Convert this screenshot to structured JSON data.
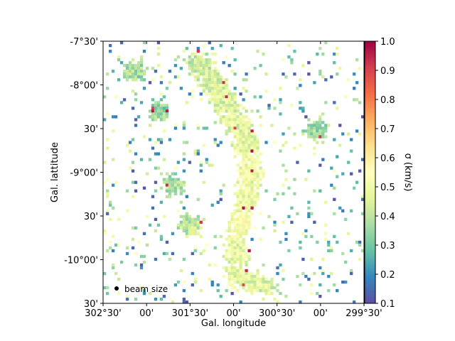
{
  "chart_data": {
    "type": "heatmap",
    "title": "",
    "xlabel": "Gal. longitude",
    "ylabel": "Gal. lattitude",
    "xlim": [
      302.5,
      299.5
    ],
    "ylim": [
      -10.5,
      -7.5
    ],
    "x_ticks": [
      {
        "value": 302.5,
        "label": "302°30'"
      },
      {
        "value": 302.0,
        "label": "00'"
      },
      {
        "value": 301.5,
        "label": "301°30'"
      },
      {
        "value": 301.0,
        "label": "00'"
      },
      {
        "value": 300.5,
        "label": "300°30'"
      },
      {
        "value": 300.0,
        "label": "00'"
      },
      {
        "value": 299.5,
        "label": "299°30'"
      }
    ],
    "y_ticks": [
      {
        "value": -7.5,
        "label": "-7°30'"
      },
      {
        "value": -8.0,
        "label": "-8°00'"
      },
      {
        "value": -8.5,
        "label": "30'"
      },
      {
        "value": -9.0,
        "label": "-9°00'"
      },
      {
        "value": -9.5,
        "label": "30'"
      },
      {
        "value": -10.0,
        "label": "-10°00'"
      },
      {
        "value": -10.5,
        "label": "30'"
      }
    ],
    "colorbar": {
      "label": "σ (km/s)",
      "range": [
        0.1,
        1.0
      ],
      "ticks": [
        {
          "value": 0.1,
          "label": "0.1"
        },
        {
          "value": 0.2,
          "label": "0.2"
        },
        {
          "value": 0.3,
          "label": "0.3"
        },
        {
          "value": 0.4,
          "label": "0.4"
        },
        {
          "value": 0.5,
          "label": "0.5"
        },
        {
          "value": 0.6,
          "label": "0.6"
        },
        {
          "value": 0.7,
          "label": "0.7"
        },
        {
          "value": 0.8,
          "label": "0.8"
        },
        {
          "value": 0.9,
          "label": "0.9"
        },
        {
          "value": 1.0,
          "label": "1.0"
        }
      ],
      "colormap": "Spectral_r",
      "stops": [
        "#5e4fa2",
        "#3288bd",
        "#66c2a5",
        "#abdda4",
        "#e6f598",
        "#ffffbf",
        "#fee08b",
        "#fdae61",
        "#f46d43",
        "#d53e4f",
        "#9e0142"
      ]
    },
    "legend": {
      "label": "beam size",
      "placement": "bottom-left"
    },
    "regions": [
      {
        "lon": 301.4,
        "lat": -7.76,
        "sigma": 0.42
      },
      {
        "lon": 301.23,
        "lat": -7.98,
        "sigma": 0.45
      },
      {
        "lon": 301.1,
        "lat": -8.2,
        "sigma": 0.46
      },
      {
        "lon": 300.95,
        "lat": -8.45,
        "sigma": 0.46
      },
      {
        "lon": 300.85,
        "lat": -8.7,
        "sigma": 0.48
      },
      {
        "lon": 300.82,
        "lat": -9.0,
        "sigma": 0.5
      },
      {
        "lon": 300.85,
        "lat": -9.3,
        "sigma": 0.5
      },
      {
        "lon": 300.92,
        "lat": -9.6,
        "sigma": 0.52
      },
      {
        "lon": 300.97,
        "lat": -9.9,
        "sigma": 0.48
      },
      {
        "lon": 300.95,
        "lat": -10.2,
        "sigma": 0.48
      },
      {
        "lon": 300.65,
        "lat": -10.3,
        "sigma": 0.45
      },
      {
        "lon": 300.05,
        "lat": -8.52,
        "sigma": 0.36
      },
      {
        "lon": 301.5,
        "lat": -9.6,
        "sigma": 0.4
      },
      {
        "lon": 301.7,
        "lat": -9.15,
        "sigma": 0.38
      },
      {
        "lon": 301.85,
        "lat": -8.3,
        "sigma": 0.34
      },
      {
        "lon": 302.15,
        "lat": -7.85,
        "sigma": 0.36
      }
    ]
  }
}
